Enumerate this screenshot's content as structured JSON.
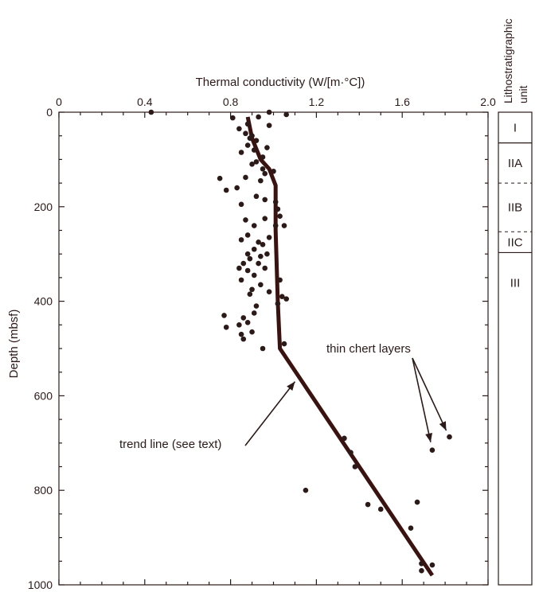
{
  "chart_data": {
    "type": "scatter",
    "xlabel": "Thermal conductivity (W/[m·°C])",
    "ylabel": "Depth (mbsf)",
    "xlim": [
      0,
      2.0
    ],
    "ylim": [
      0,
      1000
    ],
    "y_inverted": true,
    "x_axis_position": "top",
    "x_ticks": [
      0,
      0.4,
      0.8,
      1.2,
      1.6,
      2.0
    ],
    "x_tick_labels": [
      "0",
      "0.4",
      "0.8",
      "1.2",
      "1.6",
      "2.0"
    ],
    "y_ticks": [
      0,
      200,
      400,
      600,
      800,
      1000
    ],
    "y_tick_labels": [
      "0",
      "200",
      "400",
      "600",
      "800",
      "1000"
    ],
    "x_minor_step": 0.1,
    "y_minor_step": 50,
    "points": [
      [
        0.43,
        0
      ],
      [
        0.81,
        12
      ],
      [
        0.98,
        0
      ],
      [
        1.06,
        5
      ],
      [
        0.93,
        10
      ],
      [
        0.88,
        25
      ],
      [
        0.98,
        28
      ],
      [
        0.84,
        35
      ],
      [
        0.87,
        45
      ],
      [
        0.9,
        50
      ],
      [
        0.89,
        55
      ],
      [
        0.92,
        60
      ],
      [
        0.88,
        70
      ],
      [
        0.97,
        75
      ],
      [
        0.91,
        80
      ],
      [
        0.85,
        85
      ],
      [
        0.95,
        95
      ],
      [
        0.92,
        105
      ],
      [
        0.9,
        110
      ],
      [
        0.95,
        120
      ],
      [
        0.96,
        130
      ],
      [
        1.0,
        125
      ],
      [
        0.87,
        138
      ],
      [
        0.94,
        145
      ],
      [
        0.75,
        140
      ],
      [
        0.78,
        165
      ],
      [
        0.83,
        160
      ],
      [
        0.92,
        178
      ],
      [
        0.96,
        185
      ],
      [
        1.01,
        190
      ],
      [
        0.85,
        195
      ],
      [
        1.02,
        205
      ],
      [
        0.87,
        228
      ],
      [
        0.96,
        225
      ],
      [
        1.03,
        220
      ],
      [
        0.91,
        240
      ],
      [
        1.01,
        240
      ],
      [
        1.05,
        240
      ],
      [
        0.88,
        260
      ],
      [
        0.98,
        265
      ],
      [
        0.85,
        270
      ],
      [
        0.93,
        275
      ],
      [
        0.95,
        280
      ],
      [
        0.91,
        290
      ],
      [
        0.88,
        300
      ],
      [
        0.94,
        305
      ],
      [
        0.97,
        300
      ],
      [
        0.89,
        310
      ],
      [
        0.86,
        320
      ],
      [
        0.93,
        320
      ],
      [
        0.84,
        330
      ],
      [
        0.88,
        335
      ],
      [
        0.96,
        330
      ],
      [
        0.91,
        345
      ],
      [
        0.85,
        355
      ],
      [
        1.03,
        355
      ],
      [
        0.94,
        365
      ],
      [
        0.9,
        375
      ],
      [
        0.89,
        385
      ],
      [
        0.98,
        380
      ],
      [
        1.04,
        390
      ],
      [
        1.06,
        395
      ],
      [
        1.02,
        405
      ],
      [
        0.92,
        410
      ],
      [
        0.91,
        425
      ],
      [
        0.77,
        430
      ],
      [
        0.86,
        435
      ],
      [
        0.88,
        445
      ],
      [
        0.84,
        450
      ],
      [
        0.78,
        455
      ],
      [
        0.9,
        465
      ],
      [
        0.85,
        470
      ],
      [
        0.86,
        480
      ],
      [
        0.95,
        500
      ],
      [
        1.05,
        490
      ],
      [
        1.33,
        690
      ],
      [
        1.36,
        720
      ],
      [
        1.74,
        715
      ],
      [
        1.82,
        687
      ],
      [
        1.38,
        750
      ],
      [
        1.15,
        800
      ],
      [
        1.44,
        830
      ],
      [
        1.5,
        840
      ],
      [
        1.67,
        825
      ],
      [
        1.64,
        880
      ],
      [
        1.69,
        955
      ],
      [
        1.74,
        958
      ],
      [
        1.69,
        970
      ]
    ],
    "trend_line": [
      [
        0.88,
        10
      ],
      [
        0.9,
        55
      ],
      [
        0.94,
        100
      ],
      [
        0.98,
        120
      ],
      [
        1.01,
        155
      ],
      [
        1.01,
        250
      ],
      [
        1.02,
        400
      ],
      [
        1.03,
        500
      ],
      [
        1.74,
        980
      ]
    ],
    "annotations": [
      {
        "text": "thin chert layers",
        "points_to": [
          [
            1.74,
            715
          ],
          [
            1.82,
            687
          ]
        ]
      },
      {
        "text": "trend line (see text)",
        "points_to": [
          [
            1.1,
            570
          ]
        ]
      }
    ]
  },
  "lithology": {
    "title_line1": "Lithostratigraphic",
    "title_line2": "unit",
    "units": [
      {
        "label": "I",
        "top": 0,
        "bottom": 65,
        "boundary_style": "solid"
      },
      {
        "label": "IIA",
        "top": 65,
        "bottom": 150,
        "boundary_style": "dashed"
      },
      {
        "label": "IIB",
        "top": 150,
        "bottom": 253,
        "boundary_style": "dashed"
      },
      {
        "label": "IIC",
        "top": 253,
        "bottom": 297,
        "boundary_style": "solid"
      },
      {
        "label": "III",
        "top": 297,
        "bottom": 1000,
        "boundary_style": "solid"
      }
    ]
  },
  "colors": {
    "ink": "#2b1a18",
    "trend": "#3a1210"
  }
}
